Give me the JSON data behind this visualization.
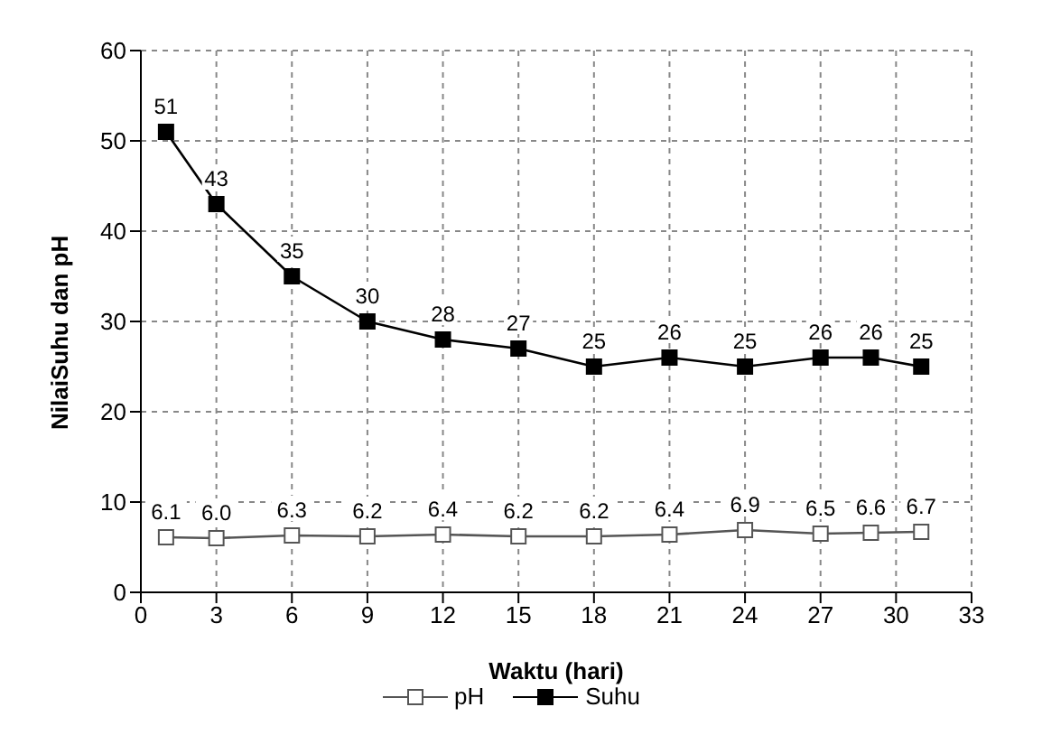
{
  "chart_data": {
    "type": "line",
    "xlabel": "Waktu (hari)",
    "ylabel": "NilaiSuhu dan pH",
    "x": [
      1,
      3,
      6,
      9,
      12,
      15,
      18,
      21,
      24,
      27,
      29,
      31
    ],
    "series": [
      {
        "name": "pH",
        "color": "#555555",
        "values": [
          6.1,
          6.0,
          6.3,
          6.2,
          6.4,
          6.2,
          6.2,
          6.4,
          6.9,
          6.5,
          6.6,
          6.7
        ],
        "value_labels": [
          "6.1",
          "6.0",
          "6.3",
          "6.2",
          "6.4",
          "6.2",
          "6.2",
          "6.4",
          "6.9",
          "6.5",
          "6.6",
          "6.7"
        ]
      },
      {
        "name": "Suhu",
        "color": "#000000",
        "values": [
          51,
          43,
          35,
          30,
          28,
          27,
          25,
          26,
          25,
          26,
          26,
          25
        ],
        "value_labels": [
          "51",
          "43",
          "35",
          "30",
          "28",
          "27",
          "25",
          "26",
          "25",
          "26",
          "26",
          "25"
        ]
      }
    ],
    "xlim": [
      0,
      33
    ],
    "xticks": [
      0,
      3,
      6,
      9,
      12,
      15,
      18,
      21,
      24,
      27,
      30,
      33
    ],
    "ylim": [
      0,
      60
    ],
    "yticks": [
      0,
      10,
      20,
      30,
      40,
      50,
      60
    ],
    "grid": true,
    "legend": "bottom",
    "marker": "square",
    "line_style": "solid"
  }
}
